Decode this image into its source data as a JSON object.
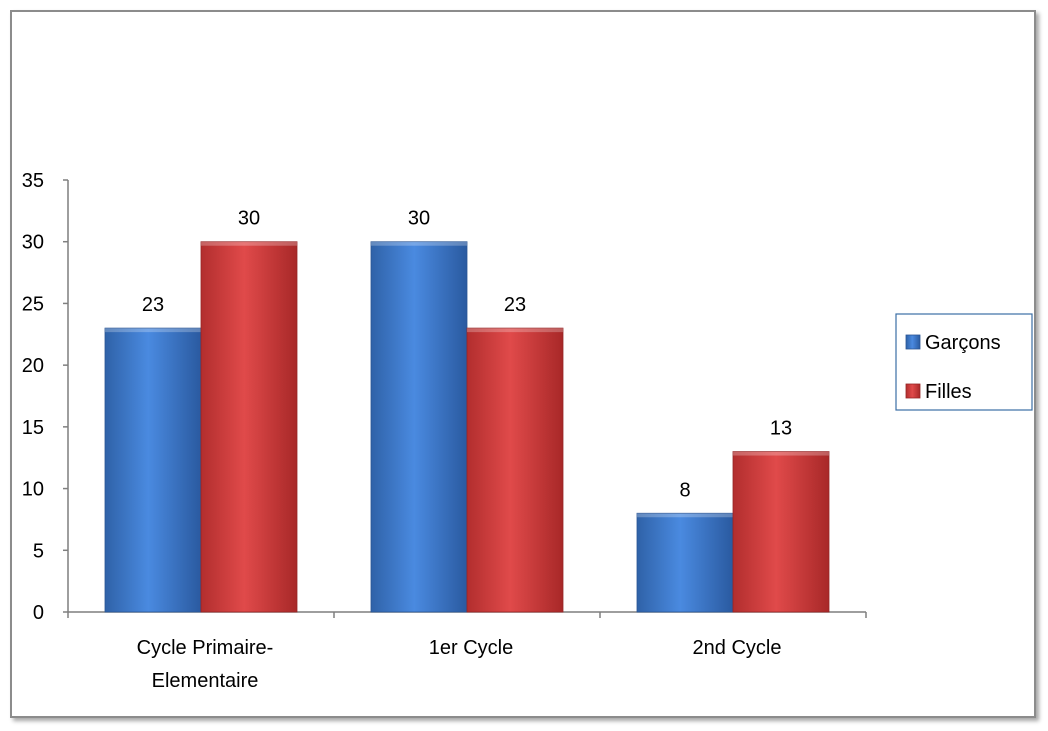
{
  "chart_data": {
    "type": "bar",
    "title": "",
    "xlabel": "",
    "ylabel": "",
    "categories": [
      "Cycle Primaire-Elementaire",
      "1er Cycle",
      "2nd Cycle"
    ],
    "category_lines": [
      [
        "Cycle Primaire-",
        "Elementaire"
      ],
      [
        "1er Cycle"
      ],
      [
        "2nd Cycle"
      ]
    ],
    "series": [
      {
        "name": "Garçons",
        "color": "#3b78c9",
        "values": [
          23,
          30,
          8
        ]
      },
      {
        "name": "Filles",
        "color": "#d43c3c",
        "values": [
          30,
          23,
          13
        ]
      }
    ],
    "ylim": [
      0,
      35
    ],
    "yticks": [
      0,
      5,
      10,
      15,
      20,
      25,
      30,
      35
    ],
    "grid": false,
    "data_labels": true,
    "legend_position": "right"
  }
}
